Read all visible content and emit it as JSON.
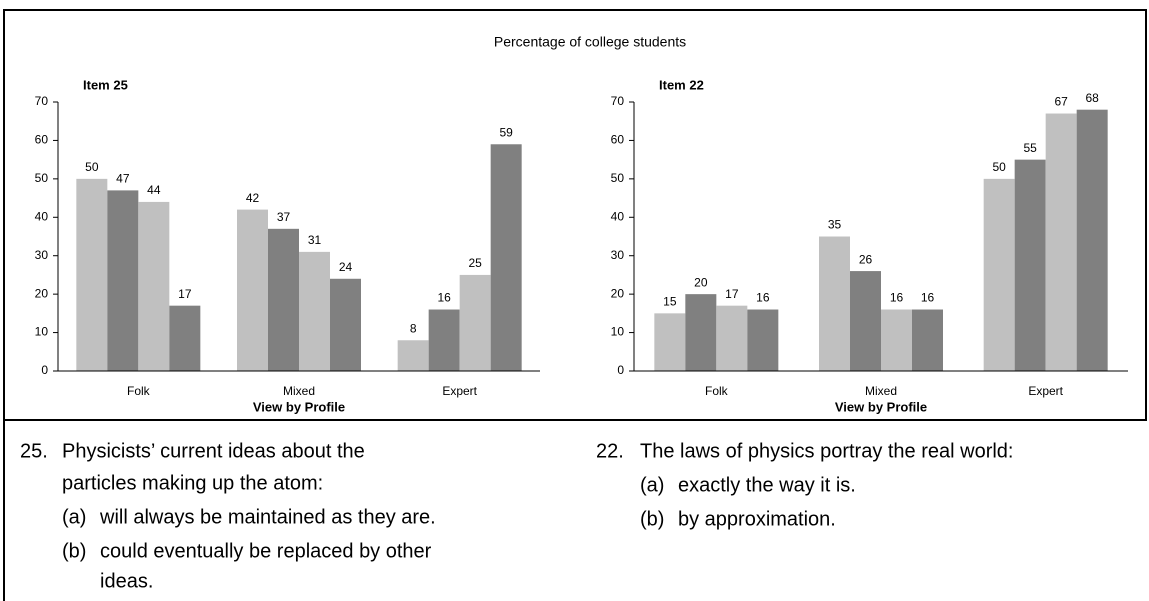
{
  "figure_title": "Percentage of college students",
  "chart_data": [
    {
      "type": "bar",
      "title": "Item 25",
      "xlabel": "View by Profile",
      "categories": [
        "Folk",
        "Mixed",
        "Expert"
      ],
      "series": [
        {
          "color": "#c0c0c0",
          "values": [
            50,
            42,
            8
          ]
        },
        {
          "color": "#808080",
          "values": [
            47,
            37,
            16
          ]
        },
        {
          "color": "#c0c0c0",
          "values": [
            44,
            31,
            25
          ]
        },
        {
          "color": "#808080",
          "values": [
            17,
            24,
            59
          ]
        }
      ],
      "ylim": [
        0,
        70
      ],
      "yticks": [
        0,
        10,
        20,
        30,
        40,
        50,
        60,
        70
      ],
      "grid": false
    },
    {
      "type": "bar",
      "title": "Item 22",
      "xlabel": "View by Profile",
      "categories": [
        "Folk",
        "Mixed",
        "Expert"
      ],
      "series": [
        {
          "color": "#c0c0c0",
          "values": [
            15,
            35,
            50
          ]
        },
        {
          "color": "#808080",
          "values": [
            20,
            26,
            55
          ]
        },
        {
          "color": "#c0c0c0",
          "values": [
            17,
            16,
            67
          ]
        },
        {
          "color": "#808080",
          "values": [
            16,
            16,
            68
          ]
        }
      ],
      "ylim": [
        0,
        70
      ],
      "yticks": [
        0,
        10,
        20,
        30,
        40,
        50,
        60,
        70
      ],
      "grid": false
    }
  ],
  "questions": [
    {
      "number": "25.",
      "text": [
        "Physicists’ current ideas about the",
        "particles making up the atom:"
      ],
      "options": [
        {
          "label": "(a)",
          "text": [
            "will always be maintained as they are."
          ]
        },
        {
          "label": "(b)",
          "text": [
            "could eventually be replaced by other",
            "ideas."
          ]
        }
      ]
    },
    {
      "number": "22.",
      "text": [
        "The laws of physics portray the real world:"
      ],
      "options": [
        {
          "label": "(a)",
          "text": [
            "exactly the way it is."
          ]
        },
        {
          "label": "(b)",
          "text": [
            "by approximation."
          ]
        }
      ]
    }
  ]
}
